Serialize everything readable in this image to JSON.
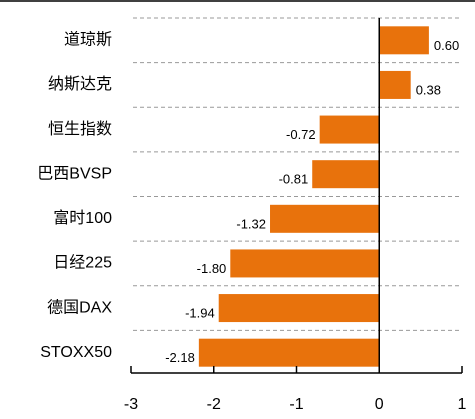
{
  "chart_data": {
    "type": "barh",
    "categories": [
      "道琼斯",
      "纳斯达克",
      "恒生指数",
      "巴西BVSP",
      "富时100",
      "日经225",
      "德国DAX",
      "STOXX50"
    ],
    "values": [
      0.6,
      0.38,
      -0.72,
      -0.81,
      -1.32,
      -1.8,
      -1.94,
      -2.18
    ],
    "value_labels": [
      "0.60",
      "0.38",
      "-0.72",
      "-0.81",
      "-1.32",
      "-1.80",
      "-1.94",
      "-2.18"
    ],
    "color": "#e8720c",
    "xlim": [
      -3,
      1
    ],
    "xticks": [
      -3,
      -2,
      -1,
      0,
      1
    ],
    "grid": true
  }
}
